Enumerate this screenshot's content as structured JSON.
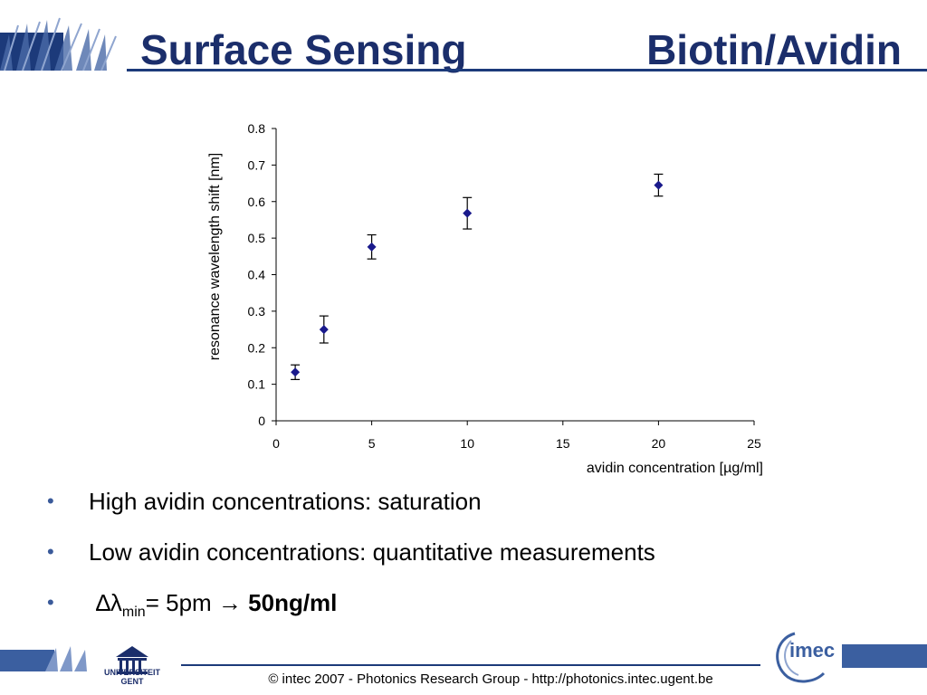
{
  "slide": {
    "title_left": "Surface Sensing",
    "title_right": "Biotin/Avidin"
  },
  "bullets": [
    {
      "text": "High avidin concentrations: saturation"
    },
    {
      "text": "Low avidin concentrations: quantitative measurements"
    }
  ],
  "formula": {
    "delta": "∆λ",
    "subscript": "min",
    "equals": "= 5pm ",
    "arrow": "→",
    "result": " 50ng/ml"
  },
  "footer": {
    "text": "© intec 2007  -  Photonics Research Group  -   http://photonics.intec.ugent.be",
    "ugent_line1": "UNIVERSITEIT",
    "ugent_line2": "GENT",
    "imec_logo": "imec"
  },
  "chart_data": {
    "type": "scatter",
    "xlabel": "avidin concentration [µg/ml]",
    "ylabel": "resonance wavelength shift [nm]",
    "xlim": [
      0,
      25
    ],
    "ylim": [
      0,
      0.8
    ],
    "xticks": [
      0,
      5,
      10,
      15,
      20,
      25
    ],
    "yticks": [
      0,
      0.1,
      0.2,
      0.3,
      0.4,
      0.5,
      0.6,
      0.7,
      0.8
    ],
    "grid": false,
    "marker": "diamond",
    "color": "#1a1a8c",
    "points": [
      {
        "x": 1,
        "y": 0.133,
        "err": 0.02
      },
      {
        "x": 2.5,
        "y": 0.25,
        "err": 0.037
      },
      {
        "x": 5,
        "y": 0.476,
        "err": 0.033
      },
      {
        "x": 10,
        "y": 0.568,
        "err": 0.043
      },
      {
        "x": 20,
        "y": 0.645,
        "err": 0.03
      }
    ]
  }
}
